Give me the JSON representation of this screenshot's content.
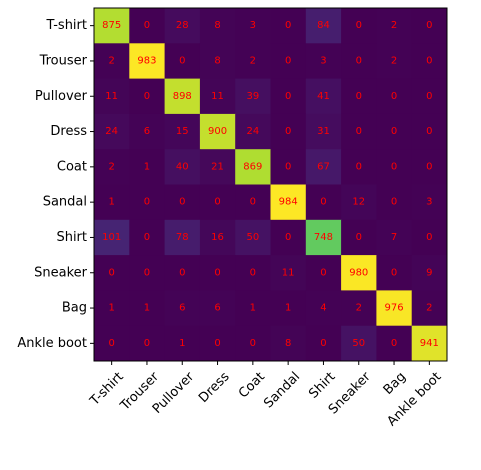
{
  "chart_data": {
    "type": "heatmap",
    "title": "",
    "xlabel": "",
    "ylabel": "",
    "x_categories": [
      "T-shirt",
      "Trouser",
      "Pullover",
      "Dress",
      "Coat",
      "Sandal",
      "Shirt",
      "Sneaker",
      "Bag",
      "Ankle boot"
    ],
    "y_categories": [
      "T-shirt",
      "Trouser",
      "Pullover",
      "Dress",
      "Coat",
      "Sandal",
      "Shirt",
      "Sneaker",
      "Bag",
      "Ankle boot"
    ],
    "values": [
      [
        875,
        0,
        28,
        8,
        3,
        0,
        84,
        0,
        2,
        0
      ],
      [
        2,
        983,
        0,
        8,
        2,
        0,
        3,
        0,
        2,
        0
      ],
      [
        11,
        0,
        898,
        11,
        39,
        0,
        41,
        0,
        0,
        0
      ],
      [
        24,
        6,
        15,
        900,
        24,
        0,
        31,
        0,
        0,
        0
      ],
      [
        2,
        1,
        40,
        21,
        869,
        0,
        67,
        0,
        0,
        0
      ],
      [
        1,
        0,
        0,
        0,
        0,
        984,
        0,
        12,
        0,
        3
      ],
      [
        101,
        0,
        78,
        16,
        50,
        0,
        748,
        0,
        7,
        0
      ],
      [
        0,
        0,
        0,
        0,
        0,
        11,
        0,
        980,
        0,
        9
      ],
      [
        1,
        1,
        6,
        6,
        1,
        1,
        4,
        2,
        976,
        2
      ],
      [
        0,
        0,
        1,
        0,
        0,
        8,
        0,
        50,
        0,
        941
      ]
    ],
    "colormap": "viridis",
    "value_range": [
      0,
      984
    ],
    "annotation_color": "#ff0000",
    "x_tick_rotation": 45,
    "grid": false,
    "legend": "none"
  }
}
